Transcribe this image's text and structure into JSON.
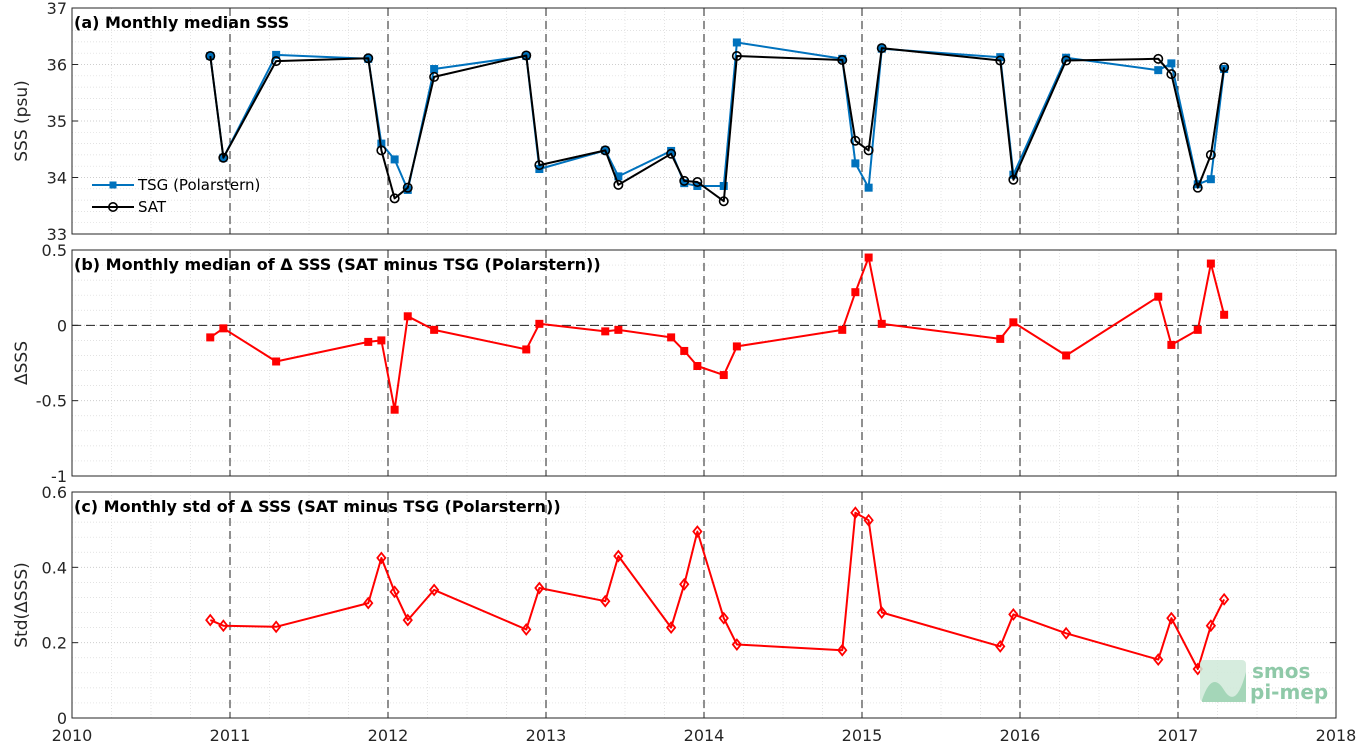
{
  "logo": {
    "line1": "smos",
    "line2": "pi-mep"
  },
  "x_axis": {
    "range": [
      2010,
      2018
    ],
    "ticks": [
      "2010",
      "2011",
      "2012",
      "2013",
      "2014",
      "2015",
      "2016",
      "2017",
      "2018"
    ],
    "year_lines": [
      2011,
      2012,
      2013,
      2014,
      2015,
      2016,
      2017
    ]
  },
  "chart_data": [
    {
      "type": "line",
      "title": "(a) Monthly median SSS",
      "ylabel": "SSS (psu)",
      "ylim": [
        33,
        37
      ],
      "yticks": [
        "33",
        "34",
        "35",
        "36",
        "37"
      ],
      "grid": true,
      "legend_position": "left",
      "series": [
        {
          "name": "TSG (Polarstern)",
          "color": "#0072bd",
          "marker": "square",
          "x": [
            2010.875,
            2010.958,
            2011.292,
            2011.875,
            2011.958,
            2012.042,
            2012.125,
            2012.292,
            2012.875,
            2012.958,
            2013.375,
            2013.458,
            2013.792,
            2013.875,
            2013.958,
            2014.125,
            2014.208,
            2014.875,
            2014.958,
            2015.042,
            2015.125,
            2015.875,
            2015.958,
            2016.292,
            2016.875,
            2016.958,
            2017.125,
            2017.208,
            2017.292
          ],
          "y": [
            36.15,
            34.35,
            36.17,
            36.1,
            34.6,
            34.32,
            33.78,
            35.92,
            36.15,
            34.15,
            34.48,
            34.02,
            34.47,
            33.9,
            33.85,
            33.85,
            36.39,
            36.1,
            34.25,
            33.82,
            36.28,
            36.13,
            34.05,
            36.12,
            35.9,
            36.02,
            33.88,
            33.97,
            35.92
          ]
        },
        {
          "name": "SAT",
          "color": "#000000",
          "marker": "circle",
          "x": [
            2010.875,
            2010.958,
            2011.292,
            2011.875,
            2011.958,
            2012.042,
            2012.125,
            2012.292,
            2012.875,
            2012.958,
            2013.375,
            2013.458,
            2013.792,
            2013.875,
            2013.958,
            2014.125,
            2014.208,
            2014.875,
            2014.958,
            2015.042,
            2015.125,
            2015.875,
            2015.958,
            2016.292,
            2016.875,
            2016.958,
            2017.125,
            2017.208,
            2017.292
          ],
          "y": [
            36.15,
            34.35,
            36.06,
            36.11,
            34.48,
            33.63,
            33.82,
            35.78,
            36.16,
            34.22,
            34.48,
            33.87,
            34.42,
            33.94,
            33.92,
            33.58,
            36.15,
            36.08,
            34.65,
            34.48,
            36.29,
            36.07,
            33.96,
            36.07,
            36.1,
            35.83,
            33.82,
            34.4,
            35.95
          ]
        }
      ]
    },
    {
      "type": "line",
      "title": "(b) Monthly median of Δ SSS (SAT minus TSG (Polarstern))",
      "ylabel": "ΔSSS",
      "ylim": [
        -1,
        0.5
      ],
      "yticks": [
        "-1",
        "-0.5",
        "0",
        "0.5"
      ],
      "zero_line": true,
      "grid": true,
      "series": [
        {
          "color": "#ff0000",
          "marker": "square",
          "x": [
            2010.875,
            2010.958,
            2011.292,
            2011.875,
            2011.958,
            2012.042,
            2012.125,
            2012.292,
            2012.875,
            2012.958,
            2013.375,
            2013.458,
            2013.792,
            2013.875,
            2013.958,
            2014.125,
            2014.208,
            2014.875,
            2014.958,
            2015.042,
            2015.125,
            2015.875,
            2015.958,
            2016.292,
            2016.875,
            2016.958,
            2017.125,
            2017.208,
            2017.292
          ],
          "y": [
            -0.08,
            -0.02,
            -0.24,
            -0.11,
            -0.1,
            -0.56,
            0.06,
            -0.03,
            -0.16,
            0.01,
            -0.04,
            -0.03,
            -0.08,
            -0.17,
            -0.27,
            -0.33,
            -0.14,
            -0.03,
            0.22,
            0.45,
            0.01,
            -0.09,
            0.02,
            -0.2,
            0.19,
            -0.13,
            -0.03,
            0.41,
            0.07
          ]
        }
      ]
    },
    {
      "type": "line",
      "title": "(c) Monthly std of Δ SSS (SAT minus TSG (Polarstern))",
      "ylabel": "Std(ΔSSS)",
      "ylim": [
        0,
        0.6
      ],
      "yticks": [
        "0",
        "0.2",
        "0.4",
        "0.6"
      ],
      "grid": true,
      "series": [
        {
          "color": "#ff0000",
          "marker": "diamond",
          "x": [
            2010.875,
            2010.958,
            2011.292,
            2011.875,
            2011.958,
            2012.042,
            2012.125,
            2012.292,
            2012.875,
            2012.958,
            2013.375,
            2013.458,
            2013.792,
            2013.875,
            2013.958,
            2014.125,
            2014.208,
            2014.875,
            2014.958,
            2015.042,
            2015.125,
            2015.875,
            2015.958,
            2016.292,
            2016.875,
            2016.958,
            2017.125,
            2017.208,
            2017.292
          ],
          "y": [
            0.26,
            0.245,
            0.242,
            0.305,
            0.425,
            0.335,
            0.26,
            0.34,
            0.235,
            0.345,
            0.31,
            0.43,
            0.24,
            0.355,
            0.495,
            0.265,
            0.195,
            0.18,
            0.545,
            0.525,
            0.28,
            0.19,
            0.275,
            0.225,
            0.155,
            0.265,
            0.13,
            0.245,
            0.315
          ]
        }
      ]
    }
  ]
}
